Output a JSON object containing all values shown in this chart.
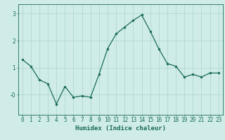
{
  "x": [
    0,
    1,
    2,
    3,
    4,
    5,
    6,
    7,
    8,
    9,
    10,
    11,
    12,
    13,
    14,
    15,
    16,
    17,
    18,
    19,
    20,
    21,
    22,
    23
  ],
  "y": [
    1.3,
    1.05,
    0.55,
    0.4,
    -0.35,
    0.3,
    -0.1,
    -0.05,
    -0.1,
    0.75,
    1.7,
    2.25,
    2.5,
    2.75,
    2.95,
    2.35,
    1.7,
    1.15,
    1.05,
    0.65,
    0.75,
    0.65,
    0.8,
    0.8
  ],
  "line_color": "#1a6b5a",
  "marker": "o",
  "marker_size": 2.0,
  "linewidth": 0.9,
  "bg_color": "#d0ece8",
  "grid_color": "#aad4cc",
  "xlabel": "Humidex (Indice chaleur)",
  "ylim": [
    -0.75,
    3.35
  ],
  "xlim": [
    -0.5,
    23.5
  ],
  "xticks": [
    0,
    1,
    2,
    3,
    4,
    5,
    6,
    7,
    8,
    9,
    10,
    11,
    12,
    13,
    14,
    15,
    16,
    17,
    18,
    19,
    20,
    21,
    22,
    23
  ],
  "yticks": [
    0,
    1,
    2,
    3
  ],
  "ytick_labels": [
    "-0",
    "1",
    "2",
    "3"
  ],
  "xlabel_fontsize": 6.5,
  "tick_fontsize": 5.5
}
